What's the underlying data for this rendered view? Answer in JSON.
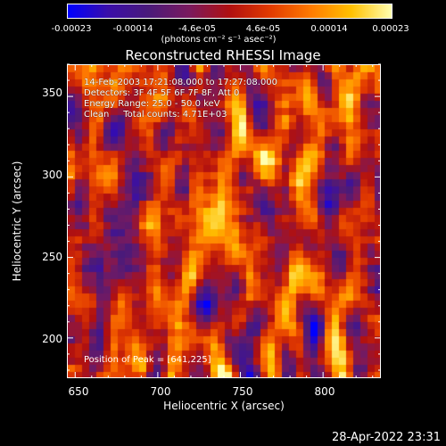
{
  "colorbar": {
    "ticks": [
      "-0.00023",
      "-0.00014",
      "-4.6e-05",
      "4.6e-05",
      "0.00014",
      "0.00023"
    ],
    "unit": "(photons cm⁻² s⁻¹ asec⁻²)",
    "colors": [
      "#0000ff",
      "#3a0ea8",
      "#4a1a7a",
      "#7a1a5e",
      "#b01010",
      "#e23a00",
      "#ff7a00",
      "#ffc000",
      "#ffffb0"
    ]
  },
  "chart_data": {
    "type": "heatmap",
    "title": "Reconstructed RHESSI Image",
    "xlabel": "Heliocentric X (arcsec)",
    "ylabel": "Heliocentric Y (arcsec)",
    "xlim": [
      645,
      835
    ],
    "ylim": [
      175,
      370
    ],
    "xticks": [
      "650",
      "700",
      "750",
      "800"
    ],
    "yticks": [
      "200",
      "250",
      "300",
      "350"
    ],
    "colorbar_range": [
      -0.00023,
      0.00023
    ],
    "annotations": {
      "time": "14-Feb-2003 17:21:08.000 to 17:27:08.000",
      "detectors": "Detectors: 3F 4F 5F 6F 7F 8F, Att 0",
      "energy": "Energy Range: 25.0 - 50.0 keV",
      "method": "Clean     Total counts: 4.71E+03",
      "peak": "Position of Peak = [641,225]"
    }
  },
  "footer": {
    "date": "28-Apr-2022 23:31"
  }
}
